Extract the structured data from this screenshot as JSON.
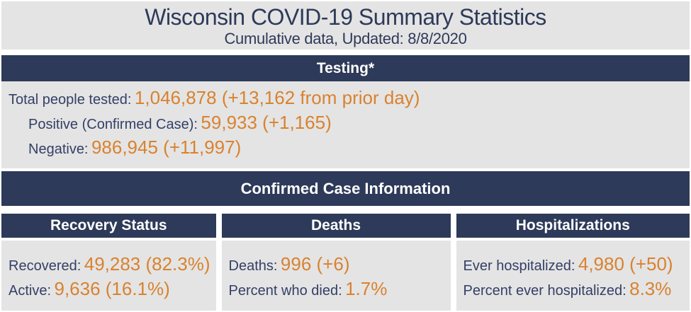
{
  "header": {
    "title": "Wisconsin COVID-19 Summary Statistics",
    "subtitle": "Cumulative data, Updated: 8/8/2020"
  },
  "testing": {
    "section_title": "Testing*",
    "rows": [
      {
        "label": "Total people tested:",
        "value": "1,046,878 (+13,162 from prior day)"
      },
      {
        "label": "Positive (Confirmed Case):",
        "value": "59,933 (+1,165)"
      },
      {
        "label": "Negative:",
        "value": "986,945 (+11,997)"
      }
    ]
  },
  "confirmed": {
    "section_title": "Confirmed Case Information",
    "columns": [
      {
        "title": "Recovery Status",
        "rows": [
          {
            "label": "Recovered:",
            "value": "49,283 (82.3%)"
          },
          {
            "label": "Active:",
            "value": "9,636 (16.1%)"
          }
        ]
      },
      {
        "title": "Deaths",
        "rows": [
          {
            "label": "Deaths:",
            "value": "996 (+6)"
          },
          {
            "label": "Percent who died:",
            "value": "1.7%"
          }
        ]
      },
      {
        "title": "Hospitalizations",
        "rows": [
          {
            "label": "Ever hospitalized:",
            "value": "4,980 (+50)"
          },
          {
            "label": "Percent ever hospitalized:",
            "value": "8.3%"
          }
        ]
      }
    ]
  },
  "colors": {
    "navy_bar": "#2e3a59",
    "label_navy": "#333f66",
    "value_orange": "#d9822f",
    "panel_gray": "#e4e4e4"
  }
}
